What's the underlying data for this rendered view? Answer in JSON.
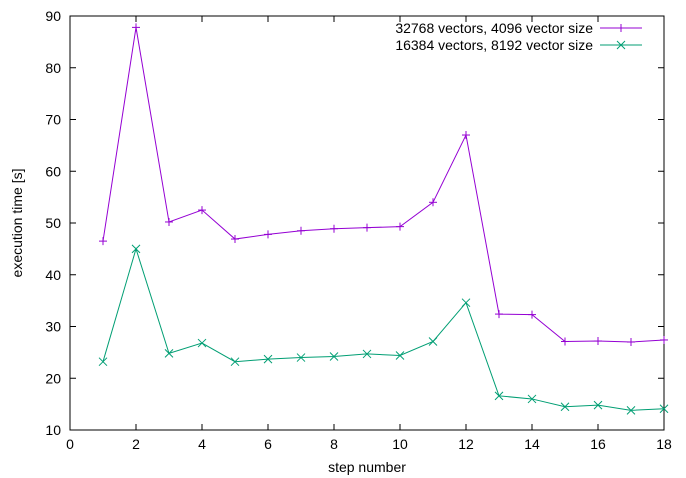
{
  "chart_data": {
    "type": "line",
    "title": "",
    "xlabel": "step number",
    "ylabel": "execution time [s]",
    "xlim": [
      0,
      18
    ],
    "ylim": [
      10,
      90
    ],
    "xticks": [
      0,
      2,
      4,
      6,
      8,
      10,
      12,
      14,
      16,
      18
    ],
    "yticks": [
      10,
      20,
      30,
      40,
      50,
      60,
      70,
      80,
      90
    ],
    "grid": false,
    "legend_position": "top-right",
    "x": [
      1,
      2,
      3,
      4,
      5,
      6,
      7,
      8,
      9,
      10,
      11,
      12,
      13,
      14,
      15,
      16,
      17,
      18
    ],
    "series": [
      {
        "name": "32768 vectors, 4096 vector size",
        "color": "#9400d3",
        "marker": "plus",
        "values": [
          46.5,
          87.8,
          50.2,
          52.5,
          46.9,
          47.8,
          48.5,
          48.9,
          49.1,
          49.3,
          54.0,
          67.0,
          32.4,
          32.3,
          27.1,
          27.2,
          27.0,
          27.4
        ]
      },
      {
        "name": "16384 vectors, 8192 vector size",
        "color": "#009e73",
        "marker": "cross",
        "values": [
          23.2,
          45.0,
          24.8,
          26.8,
          23.2,
          23.7,
          24.0,
          24.2,
          24.7,
          24.4,
          27.1,
          34.6,
          16.6,
          16.0,
          14.5,
          14.8,
          13.8,
          14.1
        ]
      }
    ]
  }
}
